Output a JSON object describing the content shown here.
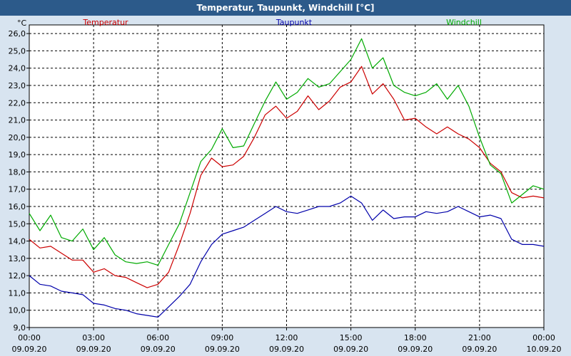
{
  "window": {
    "title": "Temperatur, Taupunkt, Windchill [°C]"
  },
  "colors": {
    "background": "#d8e4f0",
    "plot_bg": "#ffffff",
    "titlebar": "#2c5a8a",
    "temperatur": "#cc0000",
    "taupunkt": "#0000aa",
    "windchill": "#00aa00",
    "grid": "#000000"
  },
  "chart_data": {
    "type": "line",
    "title": "Temperatur, Taupunkt, Windchill [°C]",
    "ylabel": "°C",
    "ylim": [
      9.0,
      26.5
    ],
    "yticks": [
      "9,0",
      "10,0",
      "11,0",
      "12,0",
      "13,0",
      "14,0",
      "15,0",
      "16,0",
      "17,0",
      "18,0",
      "19,0",
      "20,0",
      "21,0",
      "22,0",
      "23,0",
      "24,0",
      "25,0",
      "26,0"
    ],
    "xlim_hours": [
      0,
      24
    ],
    "xticks": [
      {
        "time": "00:00",
        "date": "09.09.20"
      },
      {
        "time": "03:00",
        "date": "09.09.20"
      },
      {
        "time": "06:00",
        "date": "09.09.20"
      },
      {
        "time": "09:00",
        "date": "09.09.20"
      },
      {
        "time": "12:00",
        "date": "09.09.20"
      },
      {
        "time": "15:00",
        "date": "09.09.20"
      },
      {
        "time": "18:00",
        "date": "09.09.20"
      },
      {
        "time": "21:00",
        "date": "09.09.20"
      },
      {
        "time": "00:00",
        "date": "10.09.20"
      }
    ],
    "grid": true,
    "legend_position": "top",
    "series": [
      {
        "name": "Temperatur",
        "color": "#cc0000",
        "x": [
          0,
          0.5,
          1,
          1.5,
          2,
          2.5,
          3,
          3.5,
          4,
          4.5,
          5,
          5.5,
          6,
          6.5,
          7,
          7.5,
          8,
          8.5,
          9,
          9.5,
          10,
          10.5,
          11,
          11.5,
          12,
          12.5,
          13,
          13.5,
          14,
          14.5,
          15,
          15.5,
          16,
          16.5,
          17,
          17.5,
          18,
          18.5,
          19,
          19.5,
          20,
          20.5,
          21,
          21.5,
          22,
          22.5,
          23,
          23.5,
          24
        ],
        "y": [
          14.1,
          13.6,
          13.7,
          13.3,
          12.9,
          12.9,
          12.2,
          12.4,
          12.0,
          11.9,
          11.6,
          11.3,
          11.5,
          12.2,
          13.8,
          15.6,
          17.8,
          18.8,
          18.3,
          18.4,
          18.9,
          20.0,
          21.3,
          21.8,
          21.1,
          21.5,
          22.4,
          21.6,
          22.1,
          22.9,
          23.2,
          24.1,
          22.5,
          23.1,
          22.2,
          21.0,
          21.1,
          20.6,
          20.2,
          20.6,
          20.2,
          19.9,
          19.4,
          18.5,
          18.0,
          16.8,
          16.5,
          16.6,
          16.5
        ]
      },
      {
        "name": "Taupunkt",
        "color": "#0000aa",
        "x": [
          0,
          0.5,
          1,
          1.5,
          2,
          2.5,
          3,
          3.5,
          4,
          4.5,
          5,
          5.5,
          6,
          6.5,
          7,
          7.5,
          8,
          8.5,
          9,
          9.5,
          10,
          10.5,
          11,
          11.5,
          12,
          12.5,
          13,
          13.5,
          14,
          14.5,
          15,
          15.5,
          16,
          16.5,
          17,
          17.5,
          18,
          18.5,
          19,
          19.5,
          20,
          20.5,
          21,
          21.5,
          22,
          22.5,
          23,
          23.5,
          24
        ],
        "y": [
          12.0,
          11.5,
          11.4,
          11.1,
          11.0,
          10.9,
          10.4,
          10.3,
          10.1,
          10.0,
          9.8,
          9.7,
          9.6,
          10.2,
          10.8,
          11.5,
          12.8,
          13.8,
          14.4,
          14.6,
          14.8,
          15.2,
          15.6,
          16.0,
          15.7,
          15.6,
          15.8,
          16.0,
          16.0,
          16.2,
          16.6,
          16.2,
          15.2,
          15.8,
          15.3,
          15.4,
          15.4,
          15.7,
          15.6,
          15.7,
          16.0,
          15.7,
          15.4,
          15.5,
          15.3,
          14.1,
          13.8,
          13.8,
          13.7
        ]
      },
      {
        "name": "Windchill",
        "color": "#00aa00",
        "x": [
          0,
          0.5,
          1,
          1.5,
          2,
          2.5,
          3,
          3.5,
          4,
          4.5,
          5,
          5.5,
          6,
          6.5,
          7,
          7.5,
          8,
          8.5,
          9,
          9.5,
          10,
          10.5,
          11,
          11.5,
          12,
          12.5,
          13,
          13.5,
          14,
          14.5,
          15,
          15.5,
          16,
          16.5,
          17,
          17.5,
          18,
          18.5,
          19,
          19.5,
          20,
          20.5,
          21,
          21.5,
          22,
          22.5,
          23,
          23.5,
          24
        ],
        "y": [
          15.6,
          14.6,
          15.5,
          14.2,
          14.0,
          14.7,
          13.5,
          14.2,
          13.2,
          12.8,
          12.7,
          12.8,
          12.6,
          13.8,
          15.0,
          16.8,
          18.6,
          19.3,
          20.5,
          19.4,
          19.5,
          20.8,
          22.1,
          23.2,
          22.2,
          22.6,
          23.4,
          22.9,
          23.1,
          23.8,
          24.5,
          25.7,
          24.0,
          24.6,
          23.0,
          22.6,
          22.4,
          22.6,
          23.1,
          22.2,
          23.0,
          21.8,
          20.0,
          18.4,
          17.9,
          16.2,
          16.7,
          17.2,
          17.0
        ]
      }
    ]
  }
}
